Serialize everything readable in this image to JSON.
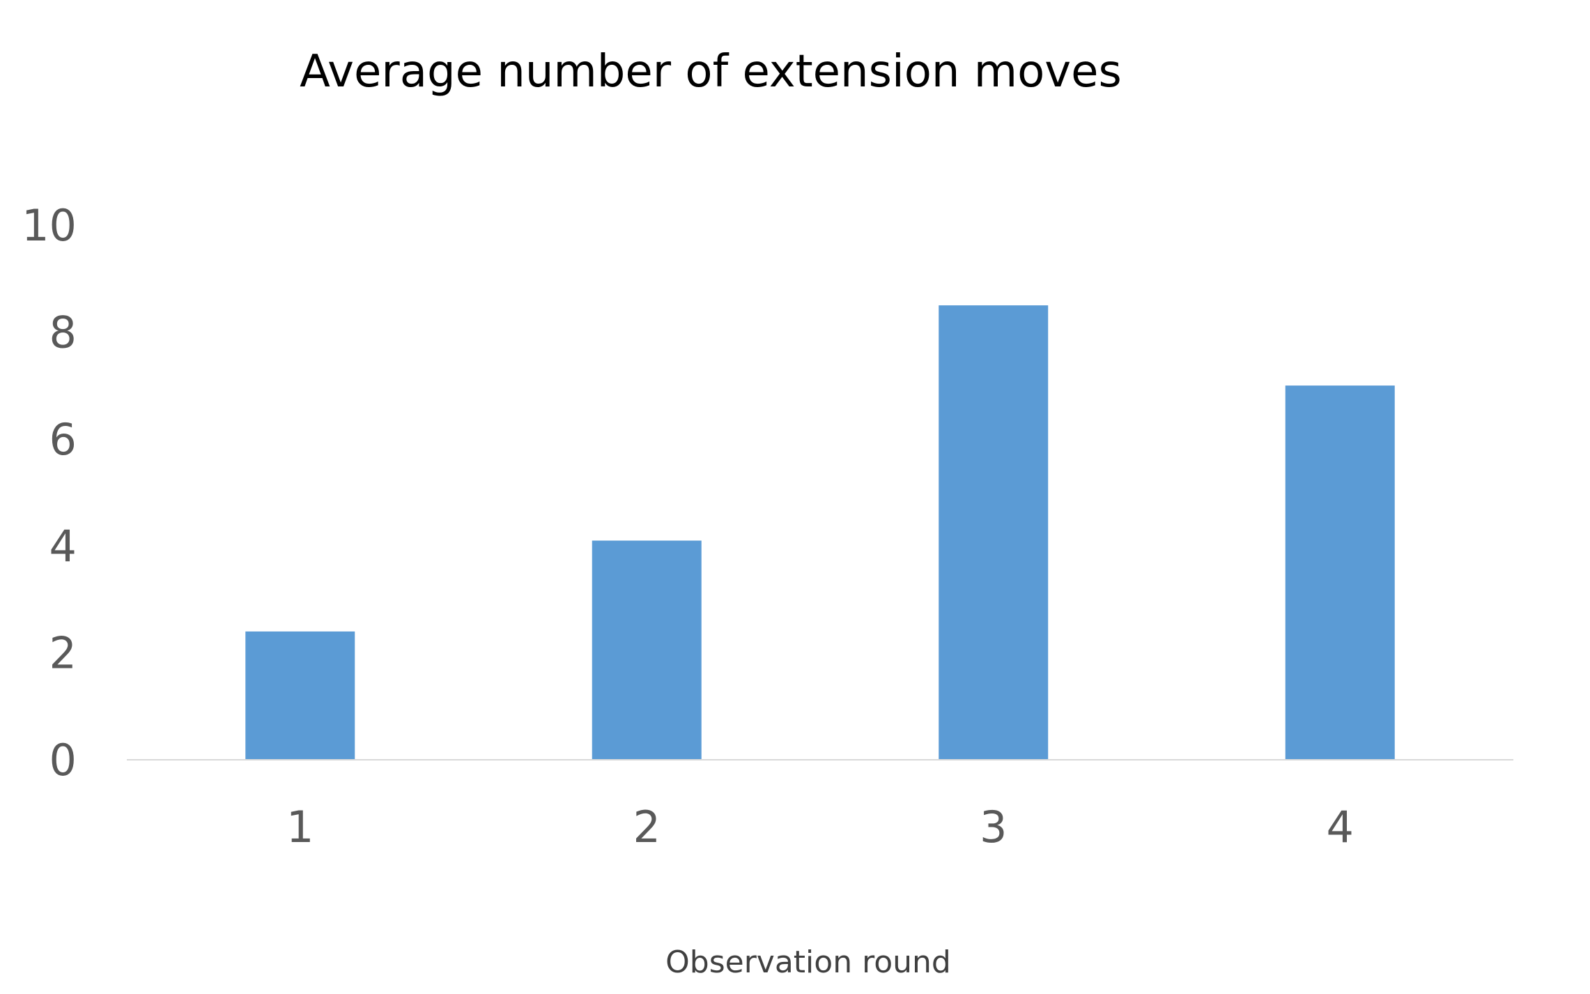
{
  "chart_data": {
    "type": "bar",
    "title": "Average number of extension moves",
    "xlabel": "Observation round",
    "ylabel": "",
    "categories": [
      "1",
      "2",
      "3",
      "4"
    ],
    "values": [
      2.4,
      4.1,
      8.5,
      7.0
    ],
    "ylim": [
      0,
      10
    ],
    "yticks": [
      "0",
      "2",
      "4",
      "6",
      "8",
      "10"
    ],
    "grid": false,
    "legend": "none",
    "bar_color": "#5B9BD5",
    "axis_color": "#D9D9D9"
  }
}
